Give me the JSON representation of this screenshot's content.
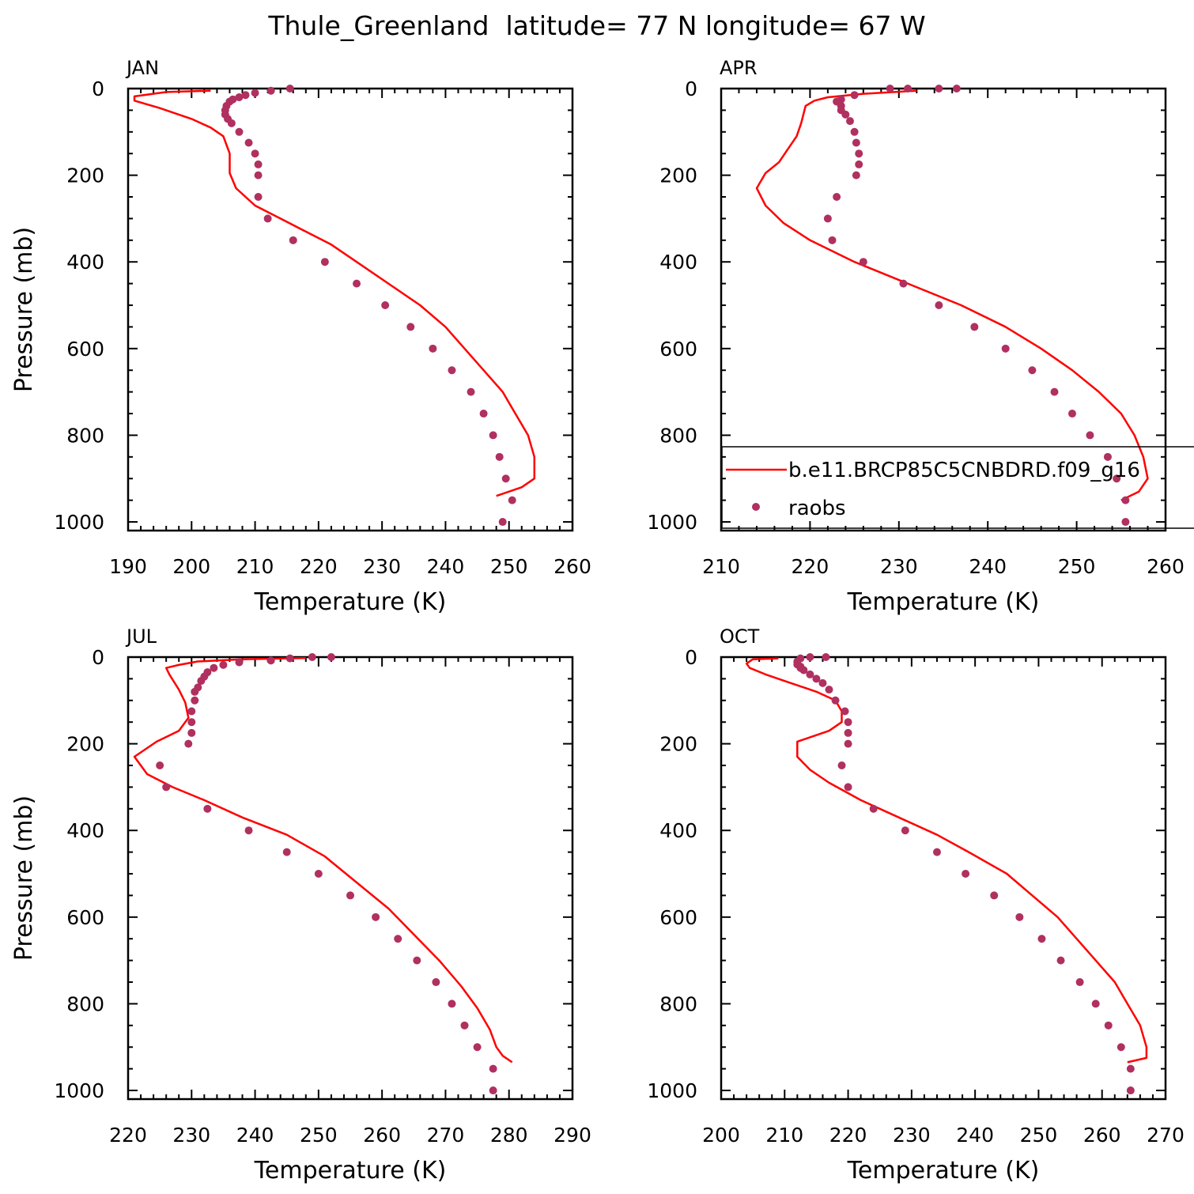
{
  "figure": {
    "title": "Thule_Greenland  latitude= 77 N longitude= 67 W"
  },
  "colors": {
    "model_line": "#ff0000",
    "raobs_dot": "#b03060",
    "axis": "#000000",
    "background": "#ffffff"
  },
  "legend": {
    "panel": "APR",
    "items": [
      {
        "label": "b.e11.BRCP85C5CNBDRD.f09_g16",
        "style": "line"
      },
      {
        "label": "raobs",
        "style": "marker"
      }
    ]
  },
  "chart_data": [
    {
      "type": "line+scatter",
      "panel_title": "JAN",
      "xlabel": "Temperature (K)",
      "ylabel": "Pressure (mb)",
      "xlim": [
        190,
        260
      ],
      "xticks": [
        190,
        200,
        210,
        220,
        230,
        240,
        250,
        260
      ],
      "ylim": [
        1020,
        0
      ],
      "yticks": [
        0,
        200,
        400,
        600,
        800,
        1000
      ],
      "series": [
        {
          "name": "b.e11.BRCP85C5CNBDRD.f09_g16",
          "kind": "line",
          "points": [
            [
              203,
              5
            ],
            [
              196,
              8
            ],
            [
              191,
              18
            ],
            [
              191,
              28
            ],
            [
              195,
              45
            ],
            [
              200,
              70
            ],
            [
              203,
              90
            ],
            [
              205,
              110
            ],
            [
              206,
              150
            ],
            [
              206,
              195
            ],
            [
              207,
              230
            ],
            [
              210,
              270
            ],
            [
              214,
              300
            ],
            [
              218,
              330
            ],
            [
              222,
              360
            ],
            [
              226,
              400
            ],
            [
              231,
              450
            ],
            [
              236,
              500
            ],
            [
              240,
              550
            ],
            [
              243,
              600
            ],
            [
              246,
              650
            ],
            [
              249,
              700
            ],
            [
              251,
              750
            ],
            [
              253,
              800
            ],
            [
              254,
              850
            ],
            [
              254,
              900
            ],
            [
              252,
              920
            ],
            [
              248,
              940
            ]
          ]
        },
        {
          "name": "raobs",
          "kind": "points",
          "points": [
            [
              215.5,
              0
            ],
            [
              212.5,
              5
            ],
            [
              210,
              10
            ],
            [
              208.5,
              15
            ],
            [
              207.5,
              20
            ],
            [
              206.5,
              25
            ],
            [
              206,
              30
            ],
            [
              205.5,
              40
            ],
            [
              205.3,
              50
            ],
            [
              205.3,
              60
            ],
            [
              205.7,
              70
            ],
            [
              206.3,
              80
            ],
            [
              207.5,
              100
            ],
            [
              209,
              125
            ],
            [
              210,
              150
            ],
            [
              210.5,
              175
            ],
            [
              210.5,
              200
            ],
            [
              210.5,
              250
            ],
            [
              212,
              300
            ],
            [
              216,
              350
            ],
            [
              221,
              400
            ],
            [
              226,
              450
            ],
            [
              230.5,
              500
            ],
            [
              234.5,
              550
            ],
            [
              238,
              600
            ],
            [
              241,
              650
            ],
            [
              244,
              700
            ],
            [
              246,
              750
            ],
            [
              247.5,
              800
            ],
            [
              248.5,
              850
            ],
            [
              249.5,
              900
            ],
            [
              250.5,
              950
            ],
            [
              249,
              1000
            ]
          ]
        }
      ]
    },
    {
      "type": "line+scatter",
      "panel_title": "APR",
      "xlabel": "Temperature (K)",
      "ylabel": "",
      "xlim": [
        210,
        260
      ],
      "xticks": [
        210,
        220,
        230,
        240,
        250,
        260
      ],
      "ylim": [
        1020,
        0
      ],
      "yticks": [
        0,
        200,
        400,
        600,
        800,
        1000
      ],
      "series": [
        {
          "name": "b.e11.BRCP85C5CNBDRD.f09_g16",
          "kind": "line",
          "points": [
            [
              232,
              5
            ],
            [
              226,
              12
            ],
            [
              222,
              20
            ],
            [
              220.5,
              28
            ],
            [
              219.5,
              40
            ],
            [
              219,
              80
            ],
            [
              218.5,
              110
            ],
            [
              217.5,
              140
            ],
            [
              216.5,
              170
            ],
            [
              215,
              195
            ],
            [
              214,
              230
            ],
            [
              215,
              270
            ],
            [
              217,
              310
            ],
            [
              220,
              350
            ],
            [
              225,
              400
            ],
            [
              231,
              450
            ],
            [
              237,
              500
            ],
            [
              242,
              550
            ],
            [
              246,
              600
            ],
            [
              249.5,
              650
            ],
            [
              252.5,
              700
            ],
            [
              255,
              750
            ],
            [
              256.5,
              800
            ],
            [
              257.5,
              850
            ],
            [
              258,
              900
            ],
            [
              257,
              930
            ],
            [
              255,
              950
            ]
          ]
        },
        {
          "name": "raobs",
          "kind": "points",
          "points": [
            [
              236.5,
              0
            ],
            [
              234.5,
              0
            ],
            [
              231,
              0
            ],
            [
              229,
              0
            ],
            [
              225,
              15
            ],
            [
              223.5,
              25
            ],
            [
              223,
              30
            ],
            [
              223.5,
              40
            ],
            [
              223.5,
              50
            ],
            [
              224,
              60
            ],
            [
              224.5,
              75
            ],
            [
              225,
              100
            ],
            [
              225.2,
              125
            ],
            [
              225.5,
              150
            ],
            [
              225.5,
              175
            ],
            [
              225.2,
              200
            ],
            [
              223,
              250
            ],
            [
              222,
              300
            ],
            [
              222.5,
              350
            ],
            [
              226,
              400
            ],
            [
              230.5,
              450
            ],
            [
              234.5,
              500
            ],
            [
              238.5,
              550
            ],
            [
              242,
              600
            ],
            [
              245,
              650
            ],
            [
              247.5,
              700
            ],
            [
              249.5,
              750
            ],
            [
              251.5,
              800
            ],
            [
              253.5,
              850
            ],
            [
              254.5,
              900
            ],
            [
              255.5,
              950
            ],
            [
              255.5,
              1000
            ]
          ]
        }
      ]
    },
    {
      "type": "line+scatter",
      "panel_title": "JUL",
      "xlabel": "Temperature (K)",
      "ylabel": "Pressure (mb)",
      "xlim": [
        220,
        290
      ],
      "xticks": [
        220,
        230,
        240,
        250,
        260,
        270,
        280,
        290
      ],
      "ylim": [
        1020,
        0
      ],
      "yticks": [
        0,
        200,
        400,
        600,
        800,
        1000
      ],
      "series": [
        {
          "name": "b.e11.BRCP85C5CNBDRD.f09_g16",
          "kind": "line",
          "points": [
            [
              248,
              2
            ],
            [
              238,
              5
            ],
            [
              231,
              10
            ],
            [
              228,
              18
            ],
            [
              226,
              25
            ],
            [
              226.5,
              40
            ],
            [
              228,
              75
            ],
            [
              229,
              105
            ],
            [
              229.5,
              140
            ],
            [
              228,
              170
            ],
            [
              224.5,
              195
            ],
            [
              221,
              230
            ],
            [
              223,
              270
            ],
            [
              227,
              300
            ],
            [
              232,
              330
            ],
            [
              238,
              370
            ],
            [
              245,
              410
            ],
            [
              251,
              460
            ],
            [
              256,
              520
            ],
            [
              261,
              580
            ],
            [
              265,
              640
            ],
            [
              269,
              700
            ],
            [
              272.5,
              760
            ],
            [
              275,
              810
            ],
            [
              277,
              860
            ],
            [
              278,
              900
            ],
            [
              279,
              920
            ],
            [
              280.5,
              935
            ]
          ]
        },
        {
          "name": "raobs",
          "kind": "points",
          "points": [
            [
              252,
              0
            ],
            [
              249,
              0
            ],
            [
              245.5,
              3
            ],
            [
              242.5,
              8
            ],
            [
              237.5,
              12
            ],
            [
              235,
              18
            ],
            [
              233.5,
              25
            ],
            [
              232.5,
              35
            ],
            [
              232,
              45
            ],
            [
              231.5,
              55
            ],
            [
              231,
              70
            ],
            [
              230.5,
              80
            ],
            [
              230.5,
              100
            ],
            [
              230,
              125
            ],
            [
              230,
              150
            ],
            [
              230,
              175
            ],
            [
              229.5,
              200
            ],
            [
              225,
              250
            ],
            [
              226,
              300
            ],
            [
              232.5,
              350
            ],
            [
              239,
              400
            ],
            [
              245,
              450
            ],
            [
              250,
              500
            ],
            [
              255,
              550
            ],
            [
              259,
              600
            ],
            [
              262.5,
              650
            ],
            [
              265.5,
              700
            ],
            [
              268.5,
              750
            ],
            [
              271,
              800
            ],
            [
              273,
              850
            ],
            [
              275,
              900
            ],
            [
              277.5,
              950
            ],
            [
              277.5,
              1000
            ]
          ]
        }
      ]
    },
    {
      "type": "line+scatter",
      "panel_title": "OCT",
      "xlabel": "Temperature (K)",
      "ylabel": "",
      "xlim": [
        200,
        270
      ],
      "xticks": [
        200,
        210,
        220,
        230,
        240,
        250,
        260,
        270
      ],
      "ylim": [
        1020,
        0
      ],
      "yticks": [
        0,
        200,
        400,
        600,
        800,
        1000
      ],
      "series": [
        {
          "name": "b.e11.BRCP85C5CNBDRD.f09_g16",
          "kind": "line",
          "points": [
            [
              209,
              3
            ],
            [
              205,
              5
            ],
            [
              204,
              15
            ],
            [
              204.5,
              25
            ],
            [
              207,
              40
            ],
            [
              211,
              60
            ],
            [
              215,
              80
            ],
            [
              218,
              100
            ],
            [
              219,
              125
            ],
            [
              219,
              150
            ],
            [
              217,
              170
            ],
            [
              214,
              185
            ],
            [
              212,
              195
            ],
            [
              212,
              230
            ],
            [
              214,
              260
            ],
            [
              217,
              290
            ],
            [
              222,
              330
            ],
            [
              228,
              370
            ],
            [
              234,
              410
            ],
            [
              239,
              450
            ],
            [
              245,
              500
            ],
            [
              249,
              550
            ],
            [
              253,
              600
            ],
            [
              256,
              650
            ],
            [
              259,
              700
            ],
            [
              262,
              750
            ],
            [
              264,
              800
            ],
            [
              266,
              850
            ],
            [
              267,
              900
            ],
            [
              267,
              925
            ],
            [
              264,
              935
            ]
          ]
        },
        {
          "name": "raobs",
          "kind": "points",
          "points": [
            [
              216.5,
              0
            ],
            [
              214,
              0
            ],
            [
              212.5,
              3
            ],
            [
              212,
              10
            ],
            [
              212,
              17
            ],
            [
              212.5,
              22
            ],
            [
              212.5,
              25
            ],
            [
              213,
              30
            ],
            [
              214,
              40
            ],
            [
              215,
              50
            ],
            [
              216,
              60
            ],
            [
              217,
              75
            ],
            [
              218,
              100
            ],
            [
              219.5,
              125
            ],
            [
              220,
              150
            ],
            [
              220,
              175
            ],
            [
              220,
              200
            ],
            [
              219,
              250
            ],
            [
              220,
              300
            ],
            [
              224,
              350
            ],
            [
              229,
              400
            ],
            [
              234,
              450
            ],
            [
              238.5,
              500
            ],
            [
              243,
              550
            ],
            [
              247,
              600
            ],
            [
              250.5,
              650
            ],
            [
              253.5,
              700
            ],
            [
              256.5,
              750
            ],
            [
              259,
              800
            ],
            [
              261,
              850
            ],
            [
              263,
              900
            ],
            [
              264.5,
              950
            ],
            [
              264.5,
              1000
            ]
          ]
        }
      ]
    }
  ]
}
